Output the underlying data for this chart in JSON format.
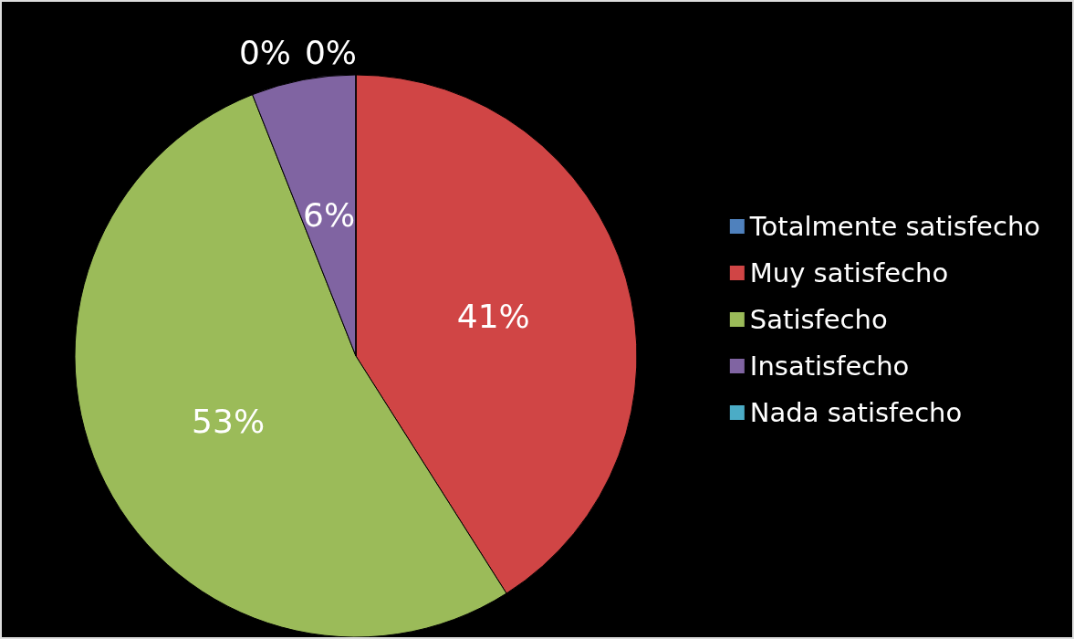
{
  "chart_data": {
    "type": "pie",
    "categories": [
      "Totalmente satisfecho",
      "Muy satisfecho",
      "Satisfecho",
      "Insatisfecho",
      "Nada satisfecho"
    ],
    "values": [
      0,
      41,
      53,
      6,
      0
    ],
    "colors": [
      "#4f81bd",
      "#d04545",
      "#9bbb59",
      "#8064a2",
      "#4bacc6"
    ],
    "value_labels": [
      "0%",
      "41%",
      "53%",
      "6%",
      "0%"
    ],
    "legend": "right"
  }
}
